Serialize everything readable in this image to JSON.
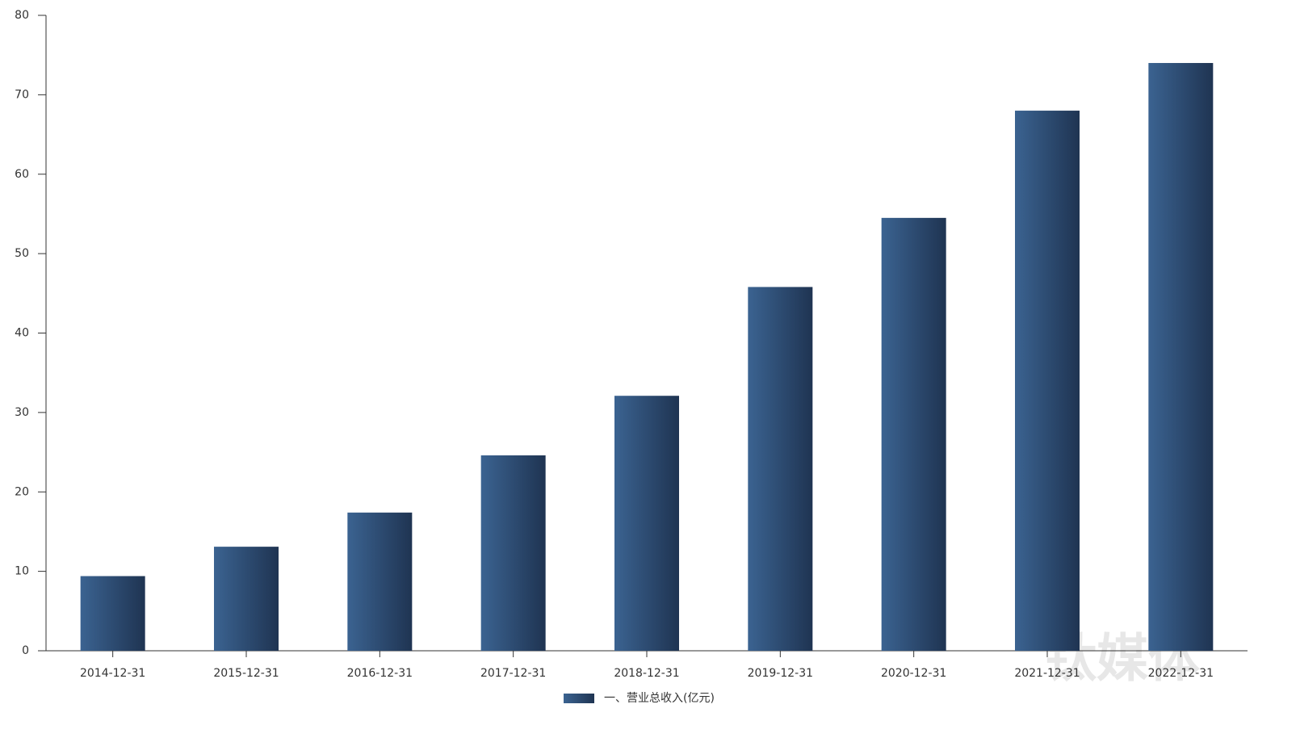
{
  "chart_data": {
    "type": "bar",
    "categories": [
      "2014-12-31",
      "2015-12-31",
      "2016-12-31",
      "2017-12-31",
      "2018-12-31",
      "2019-12-31",
      "2020-12-31",
      "2021-12-31",
      "2022-12-31"
    ],
    "series": [
      {
        "name": "一、营业总收入(亿元)",
        "color": [
          "#3b6391",
          "#1f3452"
        ],
        "values": [
          9.4,
          13.1,
          17.4,
          24.6,
          32.1,
          45.8,
          54.5,
          68.0,
          74.0
        ]
      }
    ],
    "ylim": [
      0,
      80
    ],
    "yticks": [
      0,
      10,
      20,
      30,
      40,
      50,
      60,
      70,
      80
    ],
    "grid": false,
    "legend": "bottom",
    "watermark": "钛媒体"
  }
}
